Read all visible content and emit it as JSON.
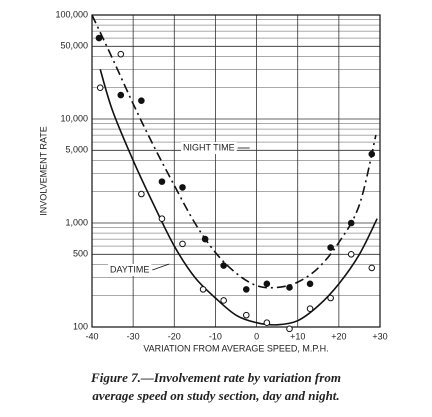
{
  "chart_data": {
    "type": "scatter",
    "y_label": "INVOLVEMENT RATE",
    "x_label": "VARIATION FROM AVERAGE SPEED, M.P.H.",
    "caption": [
      "Figure 7.—Involvement rate by variation from",
      "average speed on study section, day and night."
    ],
    "xlim": [
      -40,
      30
    ],
    "ylim": [
      100,
      100000
    ],
    "log_y": true,
    "grid": true,
    "xticks": [
      -40,
      -30,
      -20,
      -10,
      0,
      {
        "value": 10,
        "label": "+10"
      },
      {
        "value": 20,
        "label": "+20"
      },
      {
        "value": 30,
        "label": "+30"
      }
    ],
    "yticks": [
      {
        "value": 100000,
        "label": "100,000"
      },
      {
        "value": 50000,
        "label": "50,000"
      },
      {
        "value": 10000,
        "label": "10,000"
      },
      {
        "value": 5000,
        "label": "5,000"
      },
      {
        "value": 1000,
        "label": "1,000"
      },
      500,
      100
    ],
    "series": [
      {
        "name": "NIGHT TIME",
        "color": "#111",
        "marker": "filled",
        "dash": true,
        "x": [
          -38.3,
          -33,
          -28,
          -23,
          -18,
          -12.5,
          -8,
          -2.5,
          2.5,
          8,
          13,
          18,
          23,
          28
        ],
        "values": [
          60000,
          17000,
          15000,
          2500,
          2200,
          700,
          390,
          230,
          260,
          240,
          260,
          580,
          1000,
          4600
        ],
        "curve_x": [
          -40,
          -35,
          -30,
          -25,
          -20,
          -15,
          -10,
          -5,
          0,
          5,
          10,
          15,
          20,
          25,
          29
        ],
        "curve_values": [
          100000,
          38000,
          14000,
          5500,
          2300,
          1000,
          520,
          330,
          250,
          240,
          270,
          370,
          650,
          1500,
          7000
        ]
      },
      {
        "name": "DAYTIME",
        "color": "#111",
        "marker": "open",
        "dash": false,
        "x": [
          -38,
          -33,
          -28,
          -23,
          -18,
          -13,
          -8,
          -2.5,
          2.5,
          8,
          13,
          18,
          23,
          28
        ],
        "values": [
          20000,
          42000,
          1900,
          1100,
          630,
          230,
          180,
          130,
          110,
          96,
          150,
          190,
          500,
          370
        ],
        "curve_x": [
          -38,
          -35,
          -30,
          -25,
          -20,
          -15,
          -10,
          -5,
          0,
          5,
          10,
          15,
          20,
          25,
          29.3
        ],
        "curve_values": [
          30000,
          12000,
          4000,
          1500,
          600,
          300,
          190,
          130,
          110,
          105,
          115,
          160,
          260,
          500,
          1100
        ]
      }
    ]
  }
}
